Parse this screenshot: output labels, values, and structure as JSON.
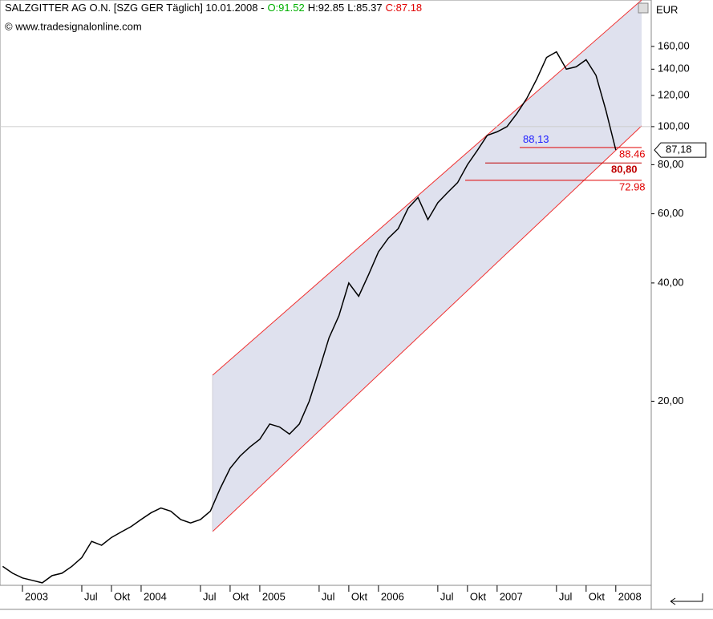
{
  "chart_data": {
    "type": "line",
    "title": "SALZGITTER AG O.N. [SZG GER  Täglich] 10.01.2008 -",
    "ohlc": [
      {
        "label": "O:91.52",
        "color": "#00b000"
      },
      {
        "label": "H:92.85",
        "color": "#000000"
      },
      {
        "label": "L:85.37",
        "color": "#000000"
      },
      {
        "label": "C:87.18",
        "color": "#e00000"
      }
    ],
    "source": "© www.tradesignalonline.com",
    "unit": "EUR",
    "log_scale": true,
    "categories": [
      null,
      null,
      "2003",
      null,
      null,
      null,
      null,
      null,
      "Jul",
      null,
      null,
      "Okt",
      null,
      null,
      "2004",
      null,
      null,
      null,
      null,
      null,
      "Jul",
      null,
      null,
      "Okt",
      null,
      null,
      "2005",
      null,
      null,
      null,
      null,
      null,
      "Jul",
      null,
      null,
      "Okt",
      null,
      null,
      "2006",
      null,
      null,
      null,
      null,
      null,
      "Jul",
      null,
      null,
      "Okt",
      null,
      null,
      "2007",
      null,
      null,
      null,
      null,
      null,
      "Jul",
      null,
      null,
      "Okt",
      null,
      null,
      "2008"
    ],
    "series": [
      {
        "name": "SALZGITTER AG O.N.",
        "color": "#000000",
        "values": [
          7.6,
          7.3,
          7.1,
          7.0,
          6.9,
          7.2,
          7.3,
          7.6,
          8.0,
          8.8,
          8.6,
          9.0,
          9.3,
          9.6,
          10.0,
          10.4,
          10.7,
          10.5,
          10.0,
          9.8,
          10.0,
          10.5,
          12.0,
          13.5,
          14.5,
          15.3,
          16.0,
          17.5,
          17.2,
          16.5,
          17.5,
          20.0,
          24.0,
          29.0,
          33.0,
          40.0,
          37.0,
          42.0,
          48.0,
          52.0,
          55.0,
          62.0,
          66.0,
          58.0,
          64.0,
          68.0,
          72.0,
          80.0,
          87.0,
          95.0,
          97.0,
          100.0,
          108.0,
          118.0,
          132.0,
          150.0,
          155.0,
          140.0,
          142.0,
          148.0,
          135.0,
          110.0,
          87.18
        ],
        "last_label": "87,18"
      }
    ],
    "ylim": [
      6.8,
      210
    ],
    "yticks": [
      {
        "value": 20,
        "label": "20,00"
      },
      {
        "value": 40,
        "label": "40,00"
      },
      {
        "value": 60,
        "label": "60,00"
      },
      {
        "value": 80,
        "label": "80,00"
      },
      {
        "value": 100,
        "label": "100,00"
      },
      {
        "value": 120,
        "label": "120,00"
      },
      {
        "value": 140,
        "label": "140,00"
      },
      {
        "value": 160,
        "label": "160,00"
      }
    ],
    "annotations": [
      {
        "value": 88.13,
        "label": "88,13",
        "color": "#2020ff"
      },
      {
        "value": 88.46,
        "label": "88.46",
        "color": "#e00000"
      },
      {
        "value": 80.8,
        "label": "80,80",
        "color": "#c00000"
      },
      {
        "value": 72.98,
        "label": "72.98",
        "color": "#e00000"
      }
    ]
  }
}
